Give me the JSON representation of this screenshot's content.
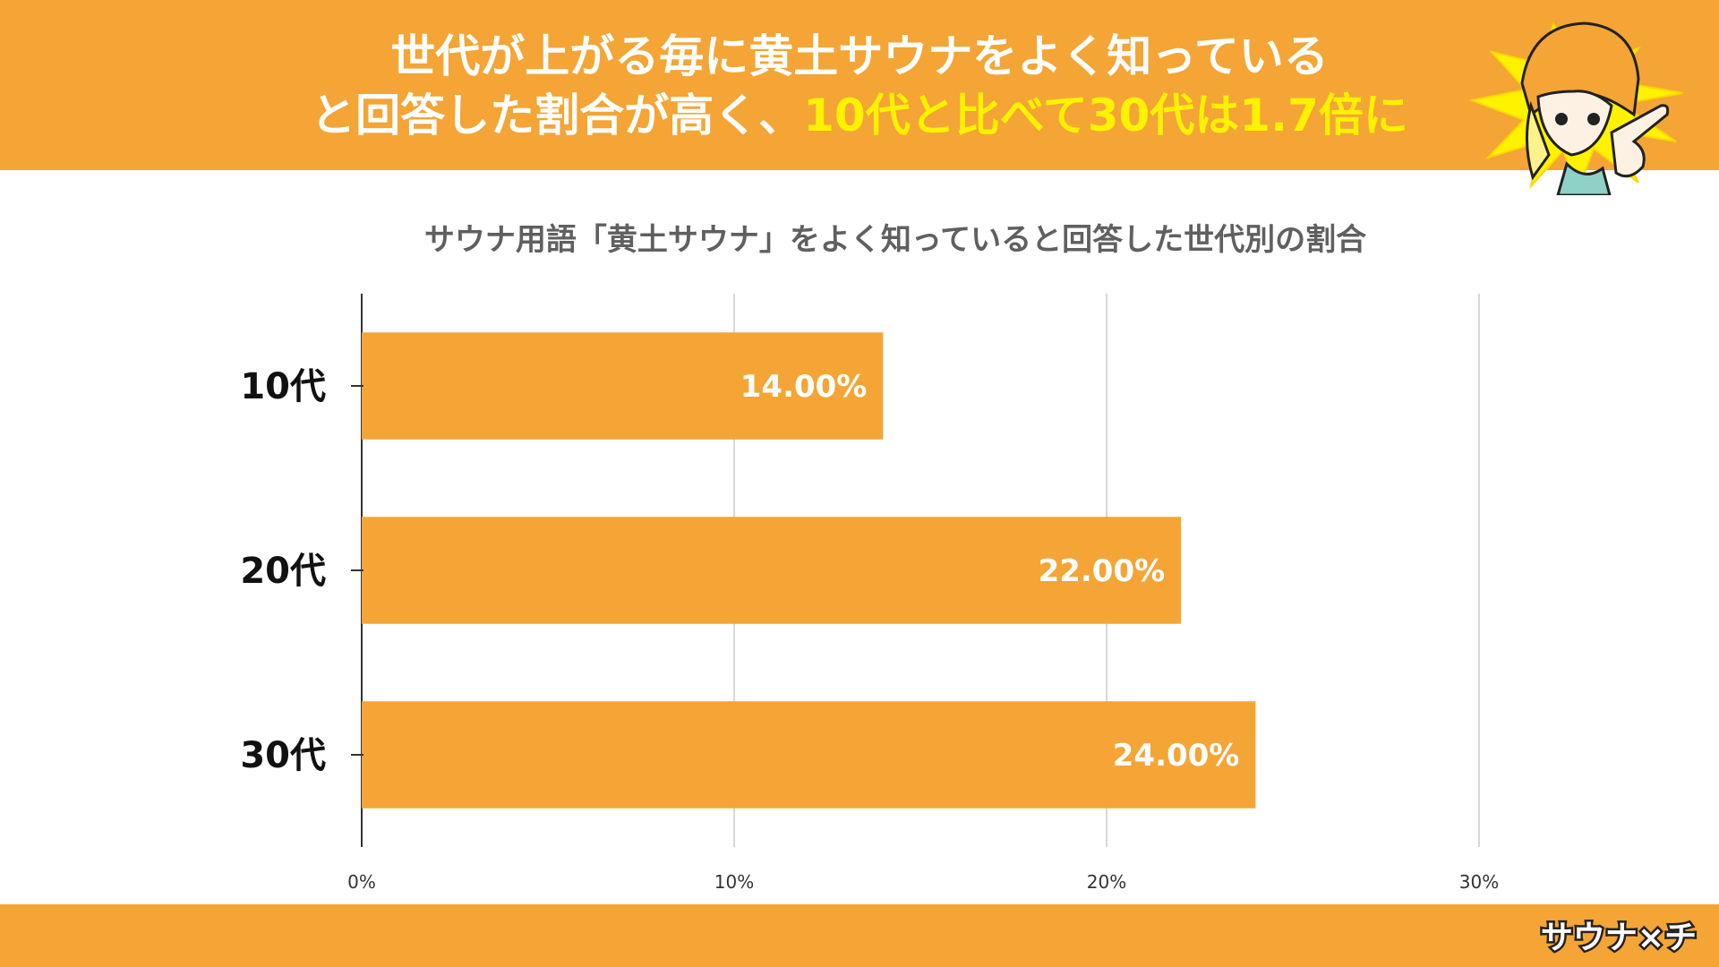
{
  "headline": {
    "line1": "世代が上がる毎に黄土サウナをよく知っている",
    "line2_prefix": "と回答した割合が高く、",
    "line2_highlight": "10代と比べて30代は1.7倍に"
  },
  "logo_text": "サウナ×チ",
  "colors": {
    "accent": "#f4a535",
    "highlight": "#fff200",
    "bar": "#f4a535",
    "title_text": "#606060"
  },
  "chart_data": {
    "type": "bar",
    "orientation": "horizontal",
    "title": "サウナ用語「黄土サウナ」をよく知っていると回答した世代別の割合",
    "categories": [
      "10代",
      "20代",
      "30代"
    ],
    "values": [
      14.0,
      22.0,
      24.0
    ],
    "value_labels": [
      "14.00%",
      "22.00%",
      "24.00%"
    ],
    "xlim": [
      0,
      30
    ],
    "x_ticks": [
      0,
      10,
      20,
      30
    ],
    "x_tick_labels": [
      "0%",
      "10%",
      "20%",
      "30%"
    ],
    "grid": true,
    "legend": "none"
  }
}
